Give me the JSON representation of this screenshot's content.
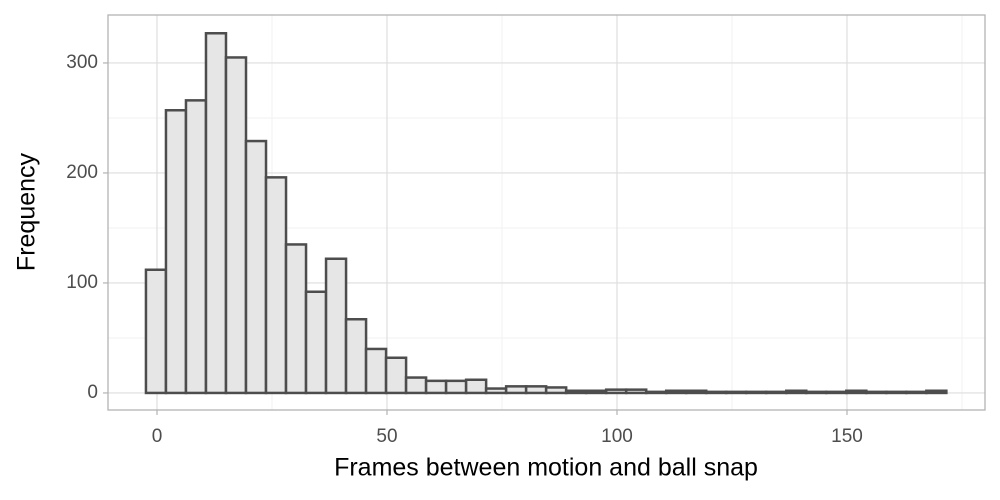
{
  "chart_data": {
    "type": "histogram",
    "x_label": "Frames between motion and ball snap",
    "y_label": "Frequency",
    "bins": [
      -2.4,
      1.95,
      6.3,
      10.65,
      15,
      19.35,
      23.7,
      28.05,
      32.4,
      36.75,
      41.1,
      45.45,
      49.8,
      54.15,
      58.5,
      62.85,
      67.2,
      71.55,
      75.9,
      80.25,
      84.6,
      88.95,
      93.3,
      97.65,
      102,
      106.35,
      110.7,
      115.05,
      119.4,
      123.75,
      128.1,
      132.45,
      136.8,
      141.15,
      145.5,
      149.85,
      154.2,
      158.55,
      162.9,
      167.25,
      171.6
    ],
    "counts": [
      112,
      257,
      266,
      327,
      305,
      229,
      196,
      135,
      92,
      122,
      67,
      40,
      32,
      14,
      11,
      11,
      12,
      4,
      6,
      6,
      5,
      2,
      2,
      3,
      3,
      1,
      2,
      2,
      1,
      1,
      1,
      1,
      2,
      1,
      1,
      2,
      1,
      1,
      1,
      2
    ],
    "color": "#e6e6e6",
    "edge_color": "#4d4d4d",
    "xlim": [
      -10.65,
      180
    ],
    "ylim": [
      -15.5,
      343.6
    ],
    "xticks": [
      0,
      50,
      100,
      150
    ],
    "yticks": [
      0,
      100,
      200,
      300
    ],
    "grid": true
  }
}
